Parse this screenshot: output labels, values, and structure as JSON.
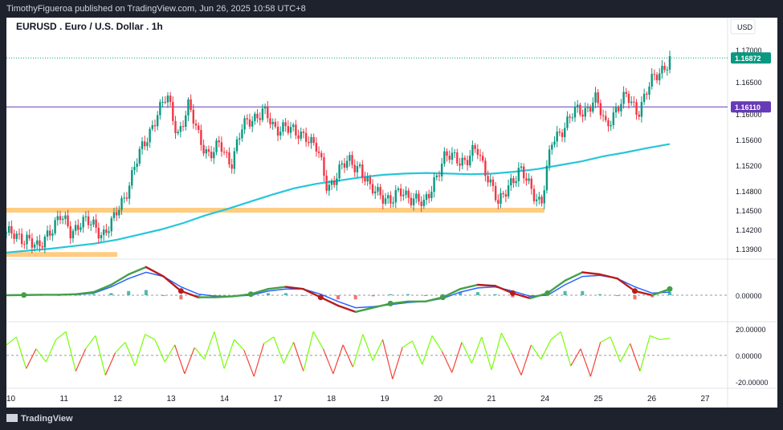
{
  "header": {
    "published": "TimothyFigueroa published on TradingView.com, Jun 26, 2025 10:58 UTC+8"
  },
  "chart_data": {
    "type": "candlestick",
    "title": "EURUSD . Euro / U.S. Dollar . 1h",
    "currency": "USD",
    "x_tick_labels": [
      "10",
      "11",
      "12",
      "13",
      "14",
      "17",
      "18",
      "19",
      "20",
      "21",
      "24",
      "25",
      "26",
      "27"
    ],
    "price_axis": {
      "ticks": [
        "1.17000",
        "1.16500",
        "1.16000",
        "1.15600",
        "1.15200",
        "1.14800",
        "1.14500",
        "1.14200",
        "1.13900"
      ],
      "ylim": [
        1.1375,
        1.1715
      ]
    },
    "current_price": {
      "label": "1.16872",
      "value": 1.16872,
      "color": "#089981"
    },
    "horizontal_line": {
      "label": "1.16110",
      "value": 1.1611,
      "color": "#673ab7"
    },
    "support_zones": [
      {
        "value": 1.145,
        "from_day": "10",
        "to_day": "24",
        "color": "#ffcc80"
      },
      {
        "value": 1.1381,
        "from_day": "10",
        "to_day": "12",
        "color": "#ffcc80"
      }
    ],
    "moving_average": {
      "color": "#26c6da",
      "values": [
        1.1384,
        1.1387,
        1.139,
        1.1394,
        1.1398,
        1.1404,
        1.1412,
        1.142,
        1.143,
        1.1442,
        1.1452,
        1.1463,
        1.1474,
        1.1484,
        1.1491,
        1.1496,
        1.1501,
        1.1505,
        1.1507,
        1.1508,
        1.1507,
        1.1506,
        1.1507,
        1.151,
        1.1514,
        1.152,
        1.1526,
        1.1534,
        1.154,
        1.1547,
        1.1553
      ]
    },
    "price_path": [
      1.1415,
      1.1405,
      1.141,
      1.1385,
      1.142,
      1.144,
      1.1415,
      1.1435,
      1.1425,
      1.1415,
      1.1432,
      1.147,
      1.152,
      1.1555,
      1.16,
      1.1625,
      1.157,
      1.161,
      1.1565,
      1.1535,
      1.155,
      1.1525,
      1.1575,
      1.1595,
      1.1605,
      1.1575,
      1.1585,
      1.1565,
      1.157,
      1.1545,
      1.1485,
      1.151,
      1.1525,
      1.152,
      1.148,
      1.1478,
      1.1462,
      1.148,
      1.147,
      1.1455,
      1.15,
      1.153,
      1.1535,
      1.1525,
      1.1545,
      1.1505,
      1.1455,
      1.1495,
      1.151,
      1.1485,
      1.1462,
      1.1555,
      1.158,
      1.16,
      1.1605,
      1.1625,
      1.158,
      1.161,
      1.1625,
      1.1605,
      1.164,
      1.1665,
      1.1687
    ],
    "oscillator": {
      "zero_label": "0.00000",
      "line_fast": [
        0.0,
        0.01,
        0.02,
        0.02,
        0.05,
        0.15,
        0.5,
        1.0,
        1.35,
        0.9,
        0.2,
        -0.1,
        -0.1,
        -0.05,
        0.05,
        0.3,
        0.4,
        0.3,
        -0.1,
        -0.5,
        -0.8,
        -0.6,
        -0.4,
        -0.3,
        -0.3,
        -0.1,
        0.3,
        0.5,
        0.45,
        0.1,
        -0.15,
        0.1,
        0.7,
        1.1,
        1.0,
        0.8,
        0.2,
        0.0,
        0.3
      ],
      "line_slow": [
        0.0,
        0.005,
        0.01,
        0.015,
        0.03,
        0.1,
        0.4,
        0.8,
        1.1,
        0.9,
        0.4,
        0.05,
        -0.05,
        -0.05,
        0.0,
        0.2,
        0.3,
        0.3,
        0.05,
        -0.3,
        -0.6,
        -0.55,
        -0.45,
        -0.35,
        -0.3,
        -0.15,
        0.15,
        0.35,
        0.4,
        0.2,
        -0.05,
        0.0,
        0.5,
        0.9,
        0.95,
        0.8,
        0.4,
        0.1,
        0.15
      ],
      "histogram": [
        0.0,
        0.005,
        0.01,
        0.005,
        0.02,
        0.05,
        0.1,
        0.2,
        0.25,
        0.0,
        -0.2,
        -0.15,
        -0.05,
        0.0,
        0.05,
        0.1,
        0.1,
        0.0,
        -0.15,
        -0.2,
        -0.2,
        -0.05,
        0.05,
        0.05,
        0.0,
        0.05,
        0.15,
        0.15,
        0.05,
        -0.1,
        -0.1,
        0.1,
        0.2,
        0.2,
        0.05,
        0.0,
        -0.2,
        -0.1,
        0.15
      ]
    },
    "momentum": {
      "ticks": [
        "20.00000",
        "0.00000",
        "-20.00000"
      ],
      "ylim": [
        -25,
        25
      ],
      "values": [
        8,
        14,
        -10,
        5,
        -5,
        12,
        18,
        -12,
        5,
        15,
        -15,
        2,
        10,
        -8,
        16,
        12,
        -5,
        8,
        -14,
        6,
        -3,
        18,
        -10,
        12,
        4,
        -16,
        9,
        14,
        -6,
        10,
        -12,
        18,
        5,
        -14,
        8,
        -9,
        16,
        -4,
        12,
        -18,
        6,
        11,
        -7,
        15,
        3,
        -13,
        10,
        -6,
        14,
        -11,
        17,
        2,
        -15,
        8,
        -3,
        12,
        18,
        -8,
        5,
        -16,
        10,
        14,
        -5,
        9,
        -12,
        15,
        12,
        13
      ]
    }
  },
  "footer": {
    "brand": "TradingView"
  }
}
